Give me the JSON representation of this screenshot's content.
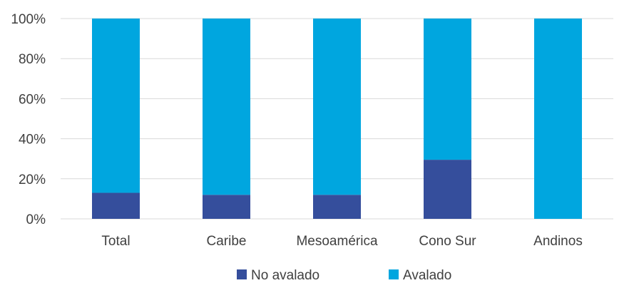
{
  "chart_data": {
    "type": "bar",
    "stacked": true,
    "percent": true,
    "categories": [
      "Total",
      "Caribe",
      "Mesoamérica",
      "Cono Sur",
      "Andinos"
    ],
    "series": [
      {
        "name": "No avalado",
        "values": [
          13,
          12,
          12,
          29.5,
          0
        ],
        "color": "#354e9c"
      },
      {
        "name": "Avalado",
        "values": [
          87,
          88,
          88,
          70.5,
          100
        ],
        "color": "#00a6df"
      }
    ],
    "ylim": [
      0,
      100
    ],
    "yticks": [
      "0%",
      "20%",
      "40%",
      "60%",
      "80%",
      "100%"
    ],
    "grid": true,
    "legend": "bottom",
    "title": "",
    "xlabel": "",
    "ylabel": ""
  }
}
